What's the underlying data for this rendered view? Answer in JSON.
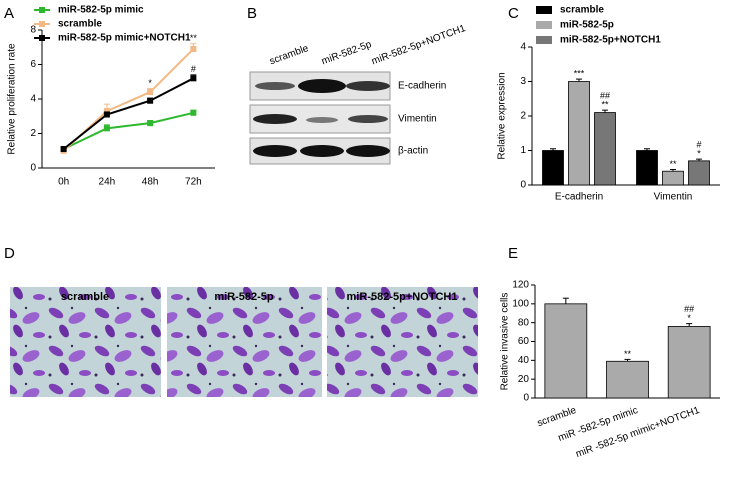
{
  "chart_data": [
    {
      "type": "line",
      "panel_label": "A",
      "ylabel": "Relative proliferation rate",
      "categories": [
        "0h",
        "24h",
        "48h",
        "72h"
      ],
      "series": [
        {
          "name": "miR-582-5p mimic",
          "color": "#2eb82e",
          "values": [
            1.1,
            2.3,
            2.6,
            3.2
          ],
          "errors": [
            0.1,
            0.2,
            0.15,
            0.15
          ],
          "annotations": [
            null,
            null,
            null,
            null
          ]
        },
        {
          "name": "scramble",
          "color": "#f2b985",
          "values": [
            1.0,
            3.3,
            4.4,
            6.9
          ],
          "errors": [
            0.1,
            0.4,
            0.2,
            0.3
          ],
          "annotations": [
            null,
            null,
            [
              "*"
            ],
            [
              "**"
            ]
          ]
        },
        {
          "name": "miR-582-5p mimic+NOTCH1",
          "color": "#000000",
          "values": [
            1.1,
            3.1,
            3.9,
            5.2
          ],
          "errors": [
            0.1,
            0.15,
            0.15,
            0.2
          ],
          "annotations": [
            null,
            null,
            null,
            [
              "#"
            ]
          ]
        }
      ],
      "ylim": [
        0,
        8
      ],
      "yticks": [
        0,
        2,
        4,
        6,
        8
      ]
    },
    {
      "type": "bar",
      "panel_label": "C",
      "ylabel": "Relative expression",
      "categories": [
        "E-cadherin",
        "Vimentin"
      ],
      "series": [
        {
          "name": "scramble",
          "color": "#000000",
          "values": [
            1.0,
            1.0
          ],
          "errors": [
            0.05,
            0.05
          ],
          "annotations": [
            null,
            null
          ]
        },
        {
          "name": "miR-582-5p",
          "color": "#aaaaaa",
          "values": [
            3.0,
            0.4
          ],
          "errors": [
            0.07,
            0.05
          ],
          "annotations": [
            [
              "***"
            ],
            [
              "**"
            ]
          ]
        },
        {
          "name": "miR-582-5p+NOTCH1",
          "color": "#777777",
          "values": [
            2.1,
            0.7
          ],
          "errors": [
            0.07,
            0.05
          ],
          "annotations": [
            [
              "##",
              "**"
            ],
            [
              "#",
              "*"
            ]
          ]
        }
      ],
      "ylim": [
        0,
        4
      ],
      "yticks": [
        0,
        1,
        2,
        3,
        4
      ]
    },
    {
      "type": "bar",
      "panel_label": "E",
      "ylabel": "Relative invasive cells",
      "categories": [
        "scramble",
        "miR -582-5p mimic",
        "miR -582-5p mimic+NOTCH1"
      ],
      "values": [
        100,
        39,
        76
      ],
      "errors": [
        6,
        2,
        3
      ],
      "annotations": [
        null,
        [
          "**"
        ],
        [
          "##",
          "*"
        ]
      ],
      "color": "#aaaaaa",
      "ylim": [
        0,
        120
      ],
      "yticks": [
        0,
        20,
        40,
        60,
        80,
        100,
        120
      ]
    }
  ],
  "blot": {
    "panel_label": "B",
    "lanes": [
      "scramble",
      "miR-582-5p",
      "miR-582-5p+NOTCH1"
    ],
    "rows": [
      "E-cadherin",
      "Vimentin",
      "β-actin"
    ]
  },
  "micrographs": {
    "panel_label": "D",
    "labels": [
      "scramble",
      "miR-582-5p",
      "miR-582-5p+NOTCH1"
    ]
  }
}
